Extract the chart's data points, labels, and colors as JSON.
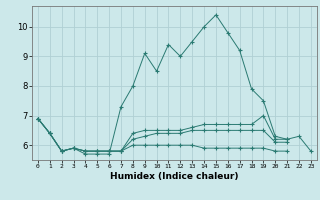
{
  "title": "",
  "xlabel": "Humidex (Indice chaleur)",
  "background_color": "#cce8ea",
  "grid_color": "#b0d0d4",
  "line_color": "#2a7a72",
  "xlim": [
    -0.5,
    23.5
  ],
  "ylim": [
    5.5,
    10.7
  ],
  "yticks": [
    6,
    7,
    8,
    9,
    10
  ],
  "xticks": [
    0,
    1,
    2,
    3,
    4,
    5,
    6,
    7,
    8,
    9,
    10,
    11,
    12,
    13,
    14,
    15,
    16,
    17,
    18,
    19,
    20,
    21,
    22,
    23
  ],
  "series": [
    [
      6.9,
      6.4,
      5.8,
      5.9,
      5.7,
      5.7,
      5.7,
      7.3,
      8.0,
      9.1,
      8.5,
      9.4,
      9.0,
      9.5,
      10.0,
      10.4,
      9.8,
      9.2,
      7.9,
      7.5,
      6.3,
      6.2,
      6.3,
      5.8
    ],
    [
      6.9,
      6.4,
      5.8,
      5.9,
      5.8,
      5.8,
      5.8,
      5.8,
      6.4,
      6.5,
      6.5,
      6.5,
      6.5,
      6.6,
      6.7,
      6.7,
      6.7,
      6.7,
      6.7,
      7.0,
      6.2,
      6.2,
      null,
      null
    ],
    [
      6.9,
      6.4,
      5.8,
      5.9,
      5.8,
      5.8,
      5.8,
      5.8,
      6.2,
      6.3,
      6.4,
      6.4,
      6.4,
      6.5,
      6.5,
      6.5,
      6.5,
      6.5,
      6.5,
      6.5,
      6.1,
      6.1,
      null,
      null
    ],
    [
      6.9,
      6.4,
      5.8,
      5.9,
      5.8,
      5.8,
      5.8,
      5.8,
      6.0,
      6.0,
      6.0,
      6.0,
      6.0,
      6.0,
      5.9,
      5.9,
      5.9,
      5.9,
      5.9,
      5.9,
      5.8,
      5.8,
      null,
      null
    ]
  ]
}
